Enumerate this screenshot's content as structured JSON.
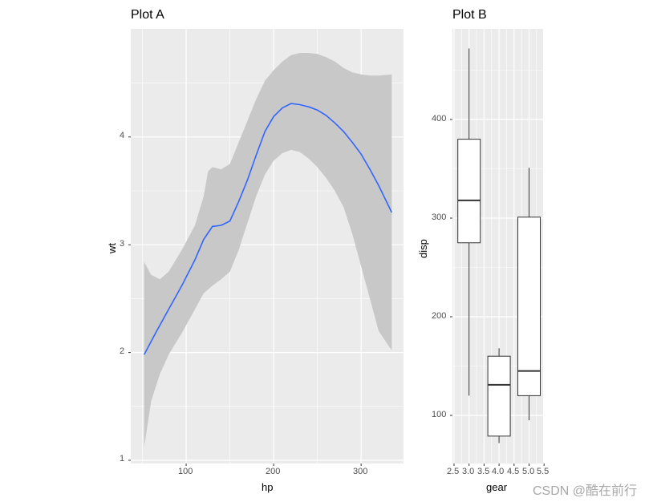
{
  "chart_data": [
    {
      "id": "plot-a",
      "type": "line",
      "title": "Plot A",
      "xlabel": "hp",
      "ylabel": "wt",
      "xlim": [
        39,
        348
      ],
      "ylim": [
        0.98,
        5.0
      ],
      "x_ticks": [
        100,
        200,
        300
      ],
      "y_ticks": [
        1,
        2,
        3,
        4
      ],
      "grid": true,
      "series": [
        {
          "name": "loess smooth",
          "color": "#3366FF",
          "x": [
            52,
            65,
            80,
            95,
            110,
            120,
            130,
            140,
            150,
            160,
            170,
            180,
            190,
            200,
            210,
            220,
            230,
            240,
            250,
            260,
            270,
            280,
            290,
            300,
            310,
            320,
            335
          ],
          "y": [
            1.98,
            2.18,
            2.4,
            2.62,
            2.86,
            3.05,
            3.17,
            3.18,
            3.22,
            3.4,
            3.6,
            3.83,
            4.05,
            4.19,
            4.27,
            4.31,
            4.3,
            4.28,
            4.25,
            4.2,
            4.13,
            4.05,
            3.95,
            3.84,
            3.7,
            3.55,
            3.3
          ]
        },
        {
          "name": "confidence band upper",
          "x": [
            52,
            60,
            70,
            80,
            95,
            110,
            120,
            125,
            130,
            140,
            150,
            160,
            170,
            180,
            190,
            200,
            210,
            220,
            230,
            240,
            250,
            260,
            270,
            280,
            290,
            300,
            310,
            320,
            335
          ],
          "y": [
            2.84,
            2.72,
            2.68,
            2.75,
            2.95,
            3.18,
            3.45,
            3.68,
            3.72,
            3.7,
            3.75,
            3.95,
            4.15,
            4.35,
            4.52,
            4.62,
            4.7,
            4.76,
            4.78,
            4.78,
            4.77,
            4.74,
            4.7,
            4.64,
            4.6,
            4.58,
            4.57,
            4.57,
            4.58
          ]
        },
        {
          "name": "confidence band lower",
          "x": [
            52,
            60,
            70,
            80,
            95,
            110,
            120,
            130,
            140,
            150,
            160,
            170,
            180,
            190,
            200,
            210,
            220,
            230,
            240,
            250,
            260,
            270,
            280,
            290,
            300,
            310,
            320,
            335
          ],
          "y": [
            1.12,
            1.55,
            1.8,
            1.98,
            2.18,
            2.4,
            2.55,
            2.62,
            2.68,
            2.75,
            2.95,
            3.2,
            3.45,
            3.65,
            3.78,
            3.85,
            3.88,
            3.86,
            3.8,
            3.72,
            3.62,
            3.5,
            3.35,
            3.1,
            2.8,
            2.5,
            2.2,
            2.02
          ]
        }
      ]
    },
    {
      "id": "plot-b",
      "type": "box",
      "title": "Plot B",
      "xlabel": "gear",
      "ylabel": "disp",
      "xlim": [
        2.4,
        5.5
      ],
      "ylim": [
        55,
        500
      ],
      "x_ticks": [
        2.5,
        3.0,
        3.5,
        4.0,
        4.5,
        5.0,
        5.5
      ],
      "x_tick_labels": [
        "2.5",
        "3.0",
        "3.5",
        "4.0",
        "4.5",
        "5.0",
        "5.5"
      ],
      "y_ticks": [
        100,
        200,
        300,
        400
      ],
      "grid": true,
      "boxes": [
        {
          "x": 3,
          "whisker_low": 120,
          "q1": 275,
          "median": 318,
          "q3": 380,
          "whisker_high": 472
        },
        {
          "x": 4,
          "whisker_low": 72,
          "q1": 79,
          "median": 131,
          "q3": 160,
          "whisker_high": 168
        },
        {
          "x": 5,
          "whisker_low": 95,
          "q1": 120,
          "median": 145,
          "q3": 301,
          "whisker_high": 351
        }
      ]
    }
  ],
  "plot_a": {
    "title": "Plot A",
    "xlabel": "hp",
    "ylabel": "wt",
    "x_tick_labels": [
      "100",
      "200",
      "300"
    ],
    "y_tick_labels": [
      "1",
      "2",
      "3",
      "4"
    ]
  },
  "plot_b": {
    "title": "Plot B",
    "xlabel": "gear",
    "ylabel": "disp",
    "x_tick_labels": [
      "2.5",
      "3.0",
      "3.5",
      "4.0",
      "4.5",
      "5.0",
      "5.5"
    ],
    "y_tick_labels": [
      "100",
      "200",
      "300",
      "400"
    ]
  },
  "colors": {
    "panel_bg": "#EBEBEB",
    "grid": "#FFFFFF",
    "line": "#3366FF",
    "band": "#C8C8C8",
    "box_stroke": "#333333"
  },
  "watermark": "CSDN @酷在前行"
}
